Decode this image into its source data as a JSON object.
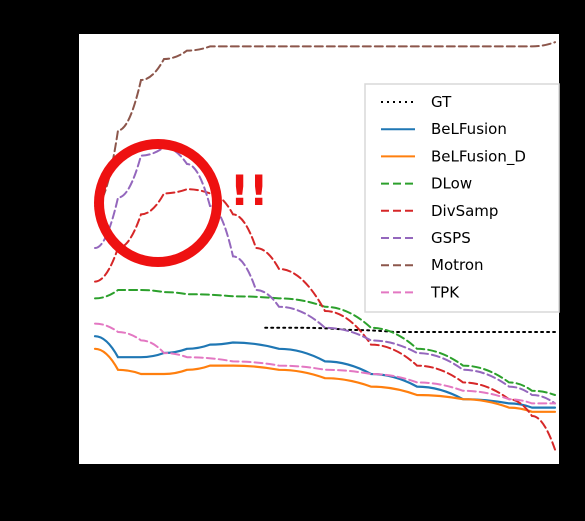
{
  "chart_data": {
    "type": "line",
    "title": "",
    "xlabel": "",
    "ylabel": "",
    "xlim": [
      0,
      100
    ],
    "ylim": [
      0,
      100
    ],
    "grid": false,
    "legend_position": "top-right",
    "annotation": {
      "text": "!!",
      "shape": "circle",
      "color": "#ee1111"
    },
    "series": [
      {
        "name": "GT",
        "color": "#000000",
        "style": "dotted",
        "x": [
          37,
          45,
          55,
          65,
          75,
          85,
          95,
          100
        ],
        "y": [
          31,
          31,
          30.5,
          30,
          30,
          30,
          30,
          30
        ]
      },
      {
        "name": "BeLFusion",
        "color": "#1f77b4",
        "style": "solid",
        "x": [
          0,
          5,
          10,
          15,
          20,
          25,
          30,
          40,
          50,
          60,
          70,
          80,
          90,
          95,
          100
        ],
        "y": [
          29,
          24,
          24,
          25,
          26,
          27,
          27.5,
          26,
          23,
          20,
          17,
          14,
          13,
          12,
          12
        ]
      },
      {
        "name": "BeLFusion_D",
        "color": "#ff7f0e",
        "style": "solid",
        "x": [
          0,
          5,
          10,
          15,
          20,
          25,
          30,
          40,
          50,
          60,
          70,
          80,
          90,
          95,
          100
        ],
        "y": [
          26,
          21,
          20,
          20,
          21,
          22,
          22,
          21,
          19,
          17,
          15,
          14,
          12,
          11,
          11
        ]
      },
      {
        "name": "DLow",
        "color": "#2ca02c",
        "style": "dashed",
        "x": [
          0,
          5,
          10,
          15,
          20,
          30,
          40,
          50,
          60,
          70,
          80,
          90,
          95,
          100
        ],
        "y": [
          38,
          40,
          40,
          39.5,
          39,
          38.5,
          38,
          36,
          31,
          26,
          22,
          18,
          16,
          15
        ]
      },
      {
        "name": "DivSamp",
        "color": "#d62728",
        "style": "dashed",
        "x": [
          0,
          5,
          10,
          15,
          20,
          25,
          30,
          35,
          40,
          50,
          60,
          70,
          80,
          90,
          95,
          100
        ],
        "y": [
          42,
          50,
          58,
          63,
          64,
          63,
          58,
          50,
          45,
          35,
          27,
          22,
          18,
          14,
          10,
          2
        ]
      },
      {
        "name": "GSPS",
        "color": "#9467bd",
        "style": "dashed",
        "x": [
          0,
          5,
          10,
          15,
          20,
          25,
          30,
          35,
          40,
          50,
          60,
          70,
          80,
          90,
          95,
          100
        ],
        "y": [
          50,
          62,
          72,
          74,
          70,
          60,
          48,
          40,
          36,
          31,
          28,
          25,
          21,
          17,
          15,
          13
        ]
      },
      {
        "name": "Motron",
        "color": "#8c564b",
        "style": "dashed",
        "x": [
          0,
          5,
          10,
          15,
          20,
          25,
          30,
          40,
          50,
          60,
          70,
          80,
          90,
          95,
          100
        ],
        "y": [
          60,
          78,
          90,
          95,
          97,
          98,
          98,
          98,
          98,
          98,
          98,
          98,
          98,
          98,
          99
        ]
      },
      {
        "name": "TPK",
        "color": "#e377c2",
        "style": "dashed",
        "x": [
          0,
          5,
          10,
          15,
          20,
          30,
          40,
          50,
          60,
          70,
          80,
          90,
          95,
          100
        ],
        "y": [
          32,
          30,
          28,
          25,
          24,
          23,
          22,
          21,
          20,
          18,
          16,
          14,
          13,
          13
        ]
      }
    ]
  }
}
